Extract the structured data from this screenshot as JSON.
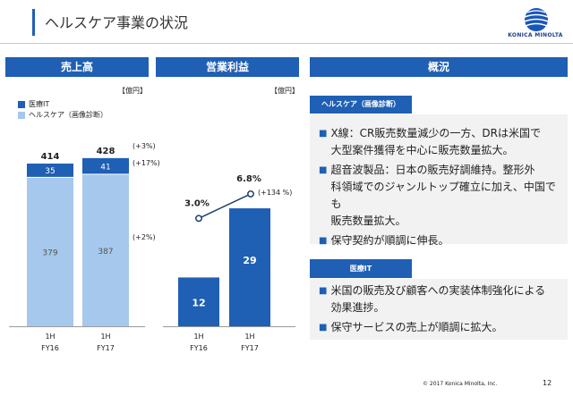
{
  "header": {
    "title": "ヘルスケア事業の状況"
  },
  "logo": {
    "text": "KONICA MINOLTA"
  },
  "sections": {
    "sales": "売上高",
    "op_income": "営業利益",
    "overview": "概況"
  },
  "units": {
    "sales": "【億円】",
    "op_income": "【億円】"
  },
  "legend": {
    "medical_it": "医療IT",
    "healthcare": "ヘルスケア（画像診断）"
  },
  "colors": {
    "medical_it": "#1f5fb4",
    "healthcare": "#a6c8ec",
    "op_bar": "#1f5fb4",
    "accent": "#1f5fb4"
  },
  "chart_data": [
    {
      "type": "bar",
      "stacked": true,
      "categories": [
        "1H FY16",
        "1H FY17"
      ],
      "category_lines": [
        [
          "1H",
          "FY16"
        ],
        [
          "1H",
          "FY17"
        ]
      ],
      "series": [
        {
          "name": "ヘルスケア（画像診断）",
          "values": [
            379,
            387
          ]
        },
        {
          "name": "医療IT",
          "values": [
            35,
            41
          ]
        }
      ],
      "totals": [
        414,
        428
      ],
      "annotations": {
        "total": "(+3%)",
        "medical_it": "(+17%)",
        "healthcare": "(+2%)"
      }
    },
    {
      "type": "bar",
      "categories": [
        "1H FY16",
        "1H FY17"
      ],
      "category_lines": [
        [
          "1H",
          "FY16"
        ],
        [
          "1H",
          "FY17"
        ]
      ],
      "series": [
        {
          "values": [
            12,
            29
          ]
        }
      ],
      "margin": {
        "labels": [
          "3.0%",
          "6.8%"
        ],
        "values": [
          3.0,
          6.8
        ]
      },
      "annotations": {
        "growth": "(+134 %)"
      }
    }
  ],
  "overview": {
    "healthcare": {
      "tag": "ヘルスケア（画像診断）",
      "bullets": [
        [
          "X線：CR販売数量減少の一方、DRは米国で",
          "大型案件獲得を中心に販売数量拡大。"
        ],
        [
          "超音波製品：日本の販売好調維持。整形外",
          "科領域でのジャンルトップ確立に加え、中国でも",
          "販売数量拡大。"
        ],
        [
          "保守契約が順調に伸長。"
        ]
      ]
    },
    "medical_it": {
      "tag": "医療IT",
      "bullets": [
        [
          "米国の販売及び顧客への実装体制強化による",
          "効果進捗。"
        ],
        [
          "保守サービスの売上が順調に拡大。"
        ]
      ]
    }
  },
  "footer": {
    "copyright": "© 2017 Konica Minolta, Inc.",
    "page": "12"
  }
}
